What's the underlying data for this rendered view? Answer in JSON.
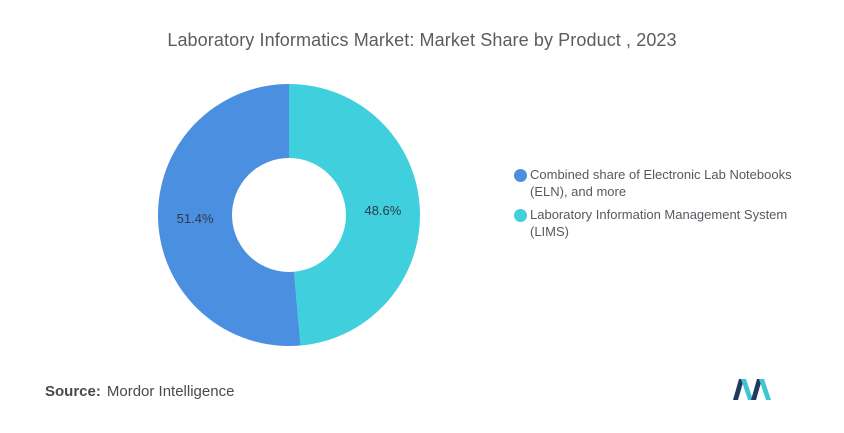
{
  "chart_data": {
    "type": "pie",
    "donut": true,
    "title": "Laboratory Informatics Market: Market Share by Product , 2023",
    "slices": [
      {
        "label": "Laboratory Information Management System (LIMS)",
        "value": 48.6,
        "display": "48.6%",
        "color": "#40cfdc"
      },
      {
        "label": "Combined share of Electronic Lab Notebooks (ELN), and more",
        "value": 51.4,
        "display": "51.4%",
        "color": "#4a8fe0"
      }
    ],
    "legend_position": "right"
  },
  "legend": {
    "items": [
      {
        "label": "Combined share of Electronic Lab Notebooks (ELN), and more",
        "color": "#4a8fe0"
      },
      {
        "label": "Laboratory Information Management System (LIMS)",
        "color": "#40cfdc"
      }
    ]
  },
  "source": {
    "prefix": "Source:",
    "text": "Mordor Intelligence"
  },
  "logo": {
    "icon": "mordor-intelligence-logo-icon",
    "colors": [
      "#1e3a5f",
      "#3ec6d6"
    ]
  }
}
